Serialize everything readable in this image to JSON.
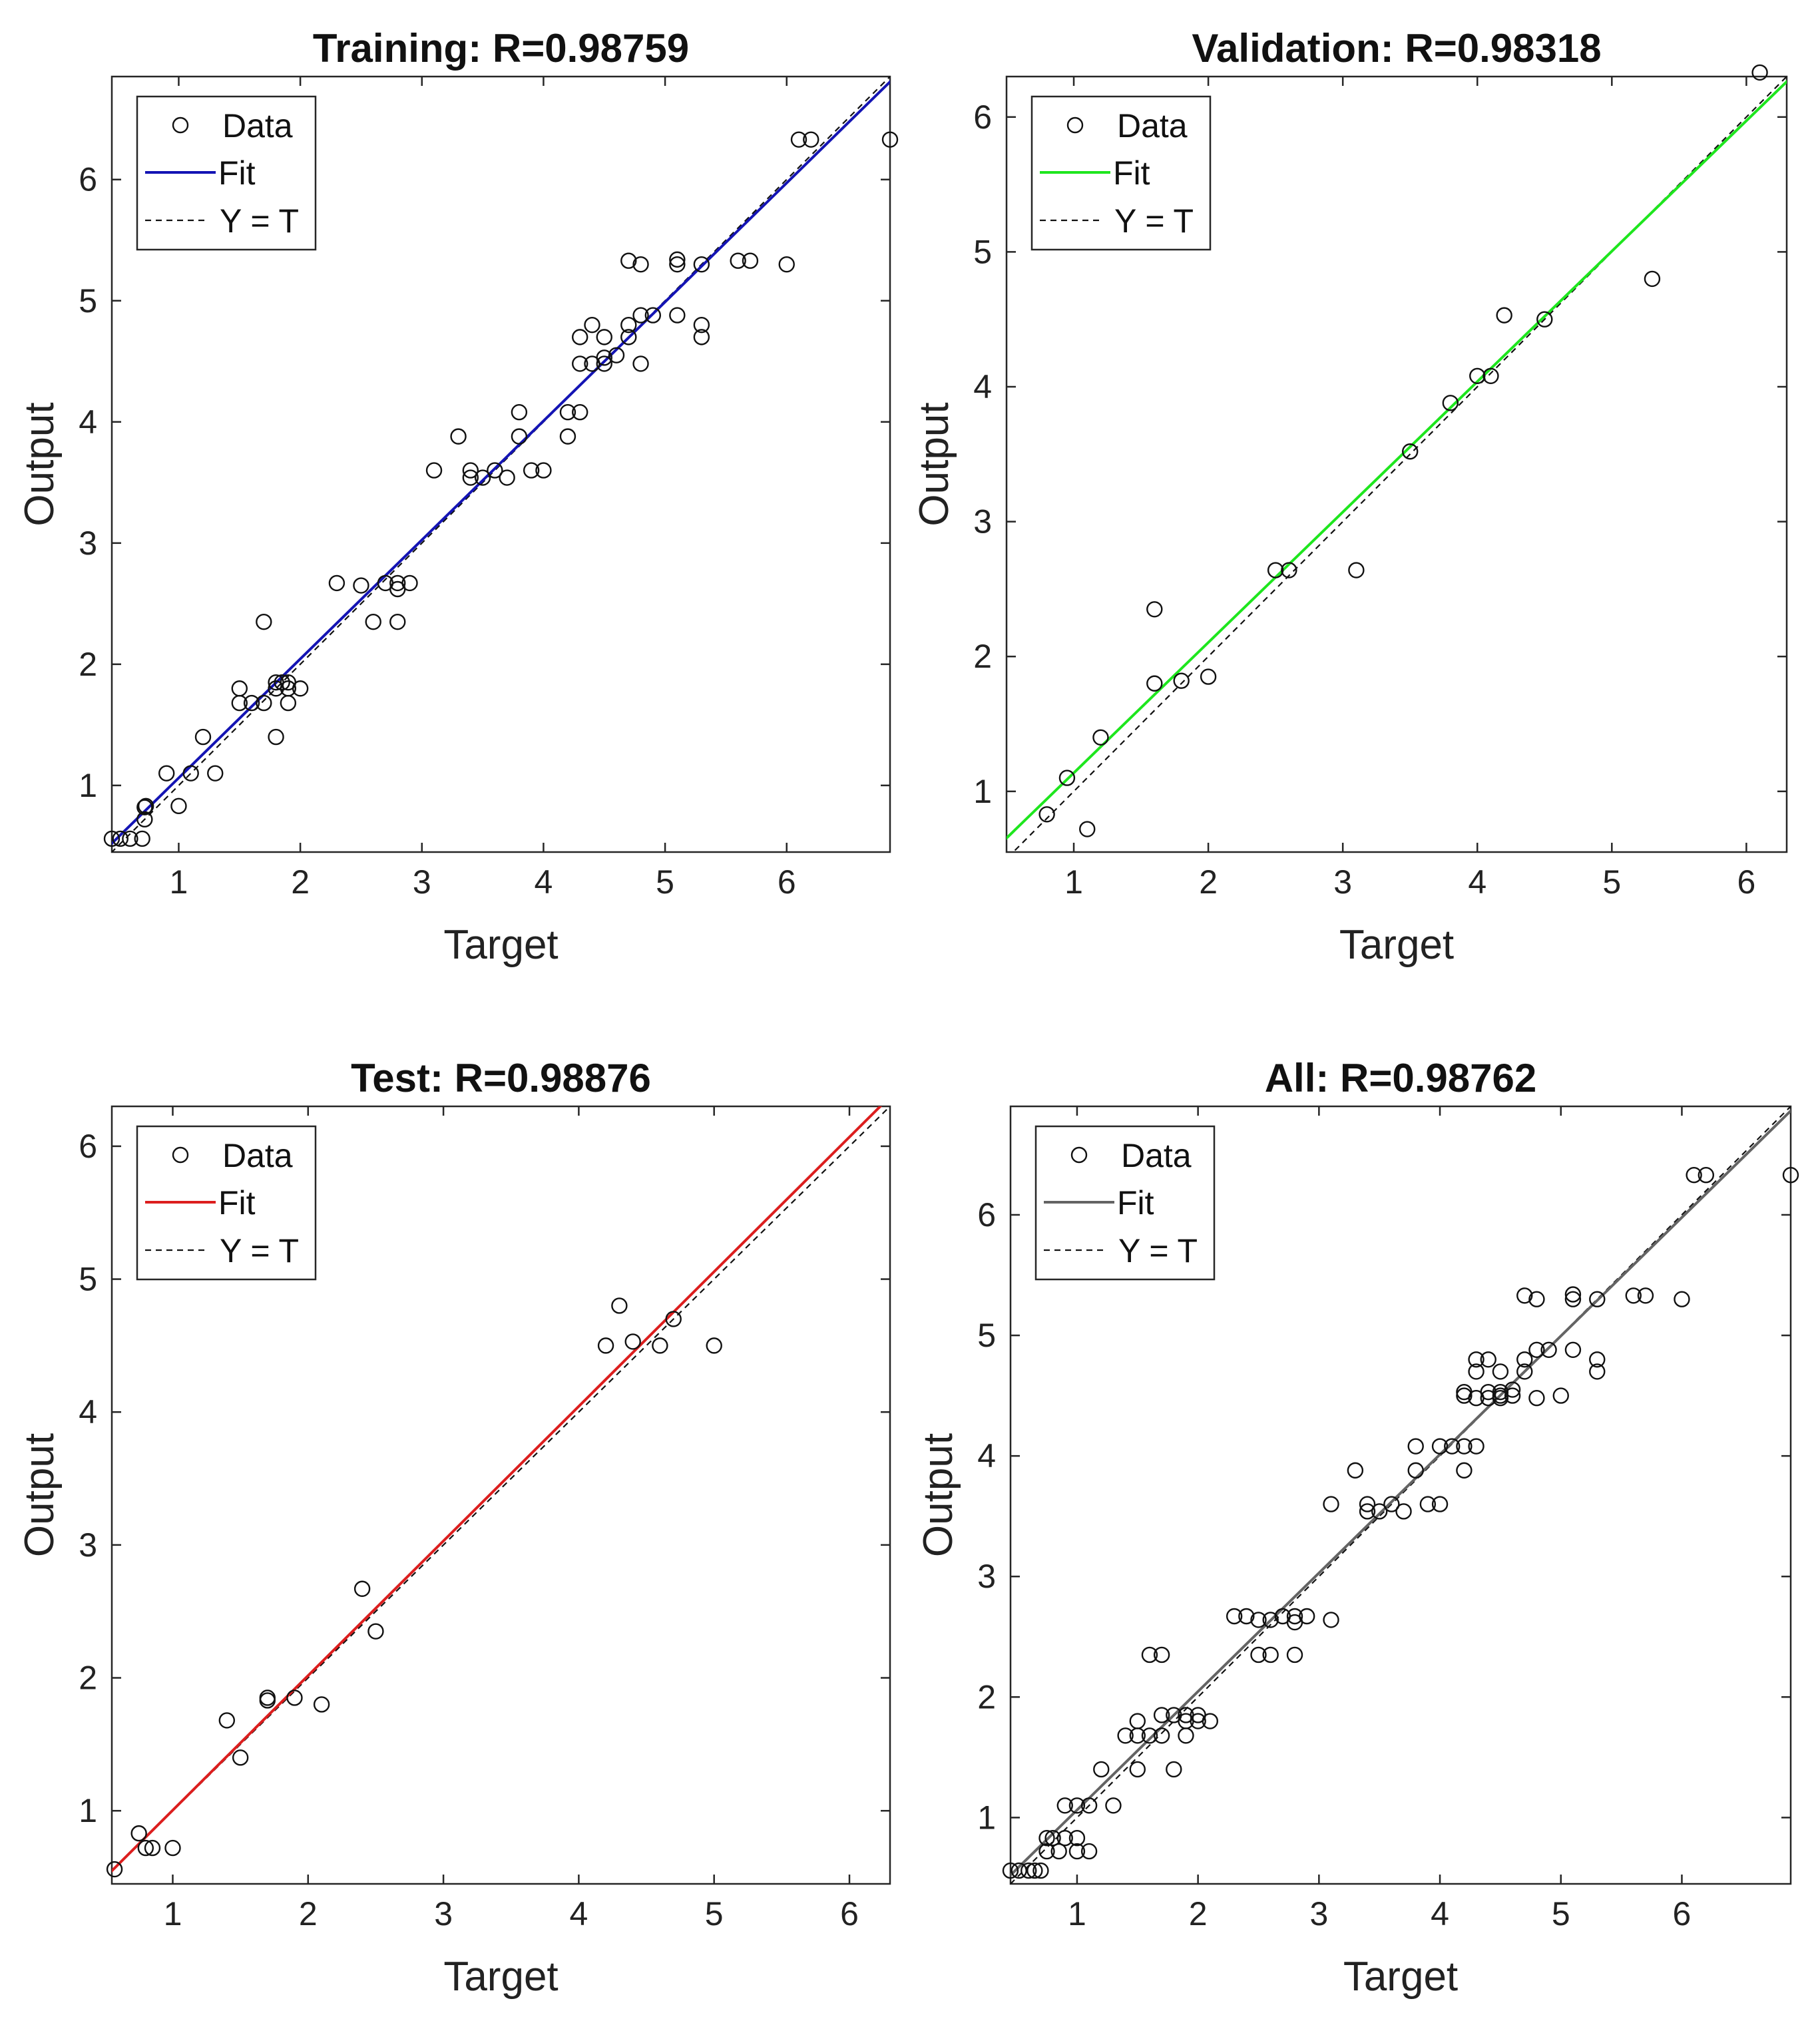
{
  "chart_data": [
    {
      "type": "scatter",
      "title": "Training: R=0.98759",
      "xlabel": "Target",
      "ylabel": "Output",
      "xlim": [
        0.45,
        6.85
      ],
      "ylim": [
        0.45,
        6.85
      ],
      "xticks": [
        1,
        2,
        3,
        4,
        5,
        6
      ],
      "yticks": [
        1,
        2,
        3,
        4,
        5,
        6
      ],
      "fit": {
        "slope": 0.982,
        "intercept": 0.08,
        "color": "#1414b4"
      },
      "legend": {
        "data": "Data",
        "fit": "Fit",
        "ident": "Y = T"
      },
      "points": [
        [
          0.45,
          0.56
        ],
        [
          0.52,
          0.56
        ],
        [
          0.6,
          0.56
        ],
        [
          0.7,
          0.56
        ],
        [
          0.72,
          0.72
        ],
        [
          0.72,
          0.82
        ],
        [
          0.73,
          0.83
        ],
        [
          0.9,
          1.1
        ],
        [
          1.0,
          0.83
        ],
        [
          1.1,
          1.1
        ],
        [
          1.2,
          1.4
        ],
        [
          1.3,
          1.1
        ],
        [
          1.5,
          1.8
        ],
        [
          1.5,
          1.68
        ],
        [
          1.6,
          1.68
        ],
        [
          1.7,
          1.68
        ],
        [
          1.7,
          2.35
        ],
        [
          1.8,
          1.4
        ],
        [
          1.8,
          1.85
        ],
        [
          1.8,
          1.8
        ],
        [
          1.85,
          1.85
        ],
        [
          1.9,
          1.85
        ],
        [
          1.9,
          1.68
        ],
        [
          1.9,
          1.8
        ],
        [
          2.0,
          1.8
        ],
        [
          2.3,
          2.67
        ],
        [
          2.5,
          2.65
        ],
        [
          2.6,
          2.35
        ],
        [
          2.7,
          2.67
        ],
        [
          2.8,
          2.35
        ],
        [
          2.8,
          2.67
        ],
        [
          2.8,
          2.62
        ],
        [
          2.9,
          2.67
        ],
        [
          3.1,
          3.6
        ],
        [
          3.3,
          3.88
        ],
        [
          3.4,
          3.6
        ],
        [
          3.4,
          3.54
        ],
        [
          3.5,
          3.54
        ],
        [
          3.6,
          3.6
        ],
        [
          3.7,
          3.54
        ],
        [
          3.8,
          4.08
        ],
        [
          3.8,
          3.88
        ],
        [
          3.9,
          3.6
        ],
        [
          4.0,
          3.6
        ],
        [
          4.2,
          4.08
        ],
        [
          4.2,
          3.88
        ],
        [
          4.3,
          4.08
        ],
        [
          4.3,
          4.7
        ],
        [
          4.3,
          4.48
        ],
        [
          4.4,
          4.48
        ],
        [
          4.4,
          4.8
        ],
        [
          4.5,
          4.48
        ],
        [
          4.5,
          4.53
        ],
        [
          4.5,
          4.7
        ],
        [
          4.6,
          4.55
        ],
        [
          4.7,
          4.7
        ],
        [
          4.7,
          4.8
        ],
        [
          4.7,
          5.33
        ],
        [
          4.8,
          4.48
        ],
        [
          4.8,
          4.88
        ],
        [
          4.8,
          5.3
        ],
        [
          4.9,
          4.88
        ],
        [
          5.1,
          4.88
        ],
        [
          5.1,
          5.3
        ],
        [
          5.1,
          5.34
        ],
        [
          5.3,
          5.3
        ],
        [
          5.3,
          4.8
        ],
        [
          5.3,
          4.7
        ],
        [
          5.6,
          5.33
        ],
        [
          5.7,
          5.33
        ],
        [
          6.0,
          5.3
        ],
        [
          6.1,
          6.33
        ],
        [
          6.2,
          6.33
        ],
        [
          6.85,
          6.33
        ]
      ]
    },
    {
      "type": "scatter",
      "title": "Validation: R=0.98318",
      "xlabel": "Target",
      "ylabel": "Output",
      "xlim": [
        0.5,
        6.3
      ],
      "ylim": [
        0.55,
        6.3
      ],
      "xticks": [
        1,
        2,
        3,
        4,
        5,
        6
      ],
      "yticks": [
        1,
        2,
        3,
        4,
        5,
        6
      ],
      "fit": {
        "slope": 0.967,
        "intercept": 0.17,
        "color": "#1ee61e"
      },
      "legend": {
        "data": "Data",
        "fit": "Fit",
        "ident": "Y = T"
      },
      "points": [
        [
          0.8,
          0.83
        ],
        [
          0.95,
          1.1
        ],
        [
          1.1,
          0.72
        ],
        [
          1.2,
          1.4
        ],
        [
          1.6,
          2.35
        ],
        [
          1.6,
          1.8
        ],
        [
          1.8,
          1.82
        ],
        [
          2.0,
          1.85
        ],
        [
          2.5,
          2.64
        ],
        [
          2.6,
          2.64
        ],
        [
          3.1,
          2.64
        ],
        [
          3.5,
          3.52
        ],
        [
          3.8,
          3.88
        ],
        [
          4.0,
          4.08
        ],
        [
          4.1,
          4.08
        ],
        [
          4.2,
          4.53
        ],
        [
          4.5,
          4.5
        ],
        [
          5.3,
          4.8
        ],
        [
          6.1,
          6.33
        ]
      ]
    },
    {
      "type": "scatter",
      "title": "Test: R=0.98876",
      "xlabel": "Target",
      "ylabel": "Output",
      "xlim": [
        0.55,
        6.3
      ],
      "ylim": [
        0.45,
        6.3
      ],
      "xticks": [
        1,
        2,
        3,
        4,
        5,
        6
      ],
      "yticks": [
        1,
        2,
        3,
        4,
        5,
        6
      ],
      "fit": {
        "slope": 1.013,
        "intercept": -0.009,
        "color": "#dc1e1e"
      },
      "legend": {
        "data": "Data",
        "fit": "Fit",
        "ident": "Y = T"
      },
      "points": [
        [
          0.57,
          0.56
        ],
        [
          0.75,
          0.83
        ],
        [
          0.8,
          0.72
        ],
        [
          0.85,
          0.72
        ],
        [
          1.0,
          0.72
        ],
        [
          1.4,
          1.68
        ],
        [
          1.5,
          1.4
        ],
        [
          1.7,
          1.85
        ],
        [
          1.7,
          1.83
        ],
        [
          1.9,
          1.85
        ],
        [
          2.1,
          1.8
        ],
        [
          2.4,
          2.67
        ],
        [
          2.5,
          2.35
        ],
        [
          4.2,
          4.5
        ],
        [
          4.3,
          4.8
        ],
        [
          4.4,
          4.53
        ],
        [
          4.6,
          4.5
        ],
        [
          4.7,
          4.7
        ],
        [
          5.0,
          4.5
        ]
      ]
    },
    {
      "type": "scatter",
      "title": "All: R=0.98762",
      "xlabel": "Target",
      "ylabel": "Output",
      "xlim": [
        0.45,
        6.9
      ],
      "ylim": [
        0.45,
        6.9
      ],
      "xticks": [
        1,
        2,
        3,
        4,
        5,
        6
      ],
      "yticks": [
        1,
        2,
        3,
        4,
        5,
        6
      ],
      "fit": {
        "slope": 0.983,
        "intercept": 0.08,
        "color": "#646464"
      },
      "legend": {
        "data": "Data",
        "fit": "Fit",
        "ident": "Y = T"
      },
      "points": [
        [
          0.45,
          0.56
        ],
        [
          0.52,
          0.56
        ],
        [
          0.6,
          0.56
        ],
        [
          0.65,
          0.56
        ],
        [
          0.7,
          0.56
        ],
        [
          0.75,
          0.72
        ],
        [
          0.75,
          0.83
        ],
        [
          0.8,
          0.83
        ],
        [
          0.85,
          0.72
        ],
        [
          0.9,
          0.83
        ],
        [
          0.9,
          1.1
        ],
        [
          1.0,
          1.1
        ],
        [
          1.0,
          0.72
        ],
        [
          1.0,
          0.83
        ],
        [
          1.1,
          1.1
        ],
        [
          1.1,
          0.72
        ],
        [
          1.2,
          1.4
        ],
        [
          1.3,
          1.1
        ],
        [
          1.4,
          1.68
        ],
        [
          1.5,
          1.4
        ],
        [
          1.5,
          1.68
        ],
        [
          1.5,
          1.8
        ],
        [
          1.6,
          1.68
        ],
        [
          1.6,
          2.35
        ],
        [
          1.7,
          2.35
        ],
        [
          1.7,
          1.68
        ],
        [
          1.7,
          1.85
        ],
        [
          1.8,
          1.4
        ],
        [
          1.8,
          1.85
        ],
        [
          1.9,
          1.85
        ],
        [
          1.9,
          1.68
        ],
        [
          1.9,
          1.8
        ],
        [
          2.0,
          1.8
        ],
        [
          2.0,
          1.85
        ],
        [
          2.1,
          1.8
        ],
        [
          2.3,
          2.67
        ],
        [
          2.4,
          2.67
        ],
        [
          2.5,
          2.64
        ],
        [
          2.5,
          2.35
        ],
        [
          2.6,
          2.35
        ],
        [
          2.6,
          2.64
        ],
        [
          2.7,
          2.67
        ],
        [
          2.8,
          2.35
        ],
        [
          2.8,
          2.67
        ],
        [
          2.8,
          2.62
        ],
        [
          2.9,
          2.67
        ],
        [
          3.1,
          2.64
        ],
        [
          3.1,
          3.6
        ],
        [
          3.3,
          3.88
        ],
        [
          3.4,
          3.6
        ],
        [
          3.4,
          3.54
        ],
        [
          3.5,
          3.54
        ],
        [
          3.6,
          3.6
        ],
        [
          3.7,
          3.54
        ],
        [
          3.8,
          4.08
        ],
        [
          3.8,
          3.88
        ],
        [
          3.9,
          3.6
        ],
        [
          4.0,
          3.6
        ],
        [
          4.0,
          4.08
        ],
        [
          4.1,
          4.08
        ],
        [
          4.2,
          4.08
        ],
        [
          4.2,
          3.88
        ],
        [
          4.2,
          4.53
        ],
        [
          4.2,
          4.5
        ],
        [
          4.3,
          4.08
        ],
        [
          4.3,
          4.7
        ],
        [
          4.3,
          4.8
        ],
        [
          4.3,
          4.48
        ],
        [
          4.4,
          4.48
        ],
        [
          4.4,
          4.8
        ],
        [
          4.4,
          4.53
        ],
        [
          4.5,
          4.48
        ],
        [
          4.5,
          4.53
        ],
        [
          4.5,
          4.5
        ],
        [
          4.5,
          4.7
        ],
        [
          4.6,
          4.55
        ],
        [
          4.6,
          4.5
        ],
        [
          4.7,
          4.7
        ],
        [
          4.7,
          4.8
        ],
        [
          4.7,
          5.33
        ],
        [
          4.8,
          4.48
        ],
        [
          4.8,
          4.88
        ],
        [
          4.8,
          5.3
        ],
        [
          4.9,
          4.88
        ],
        [
          5.0,
          4.5
        ],
        [
          5.1,
          4.88
        ],
        [
          5.1,
          5.3
        ],
        [
          5.1,
          5.34
        ],
        [
          5.3,
          5.3
        ],
        [
          5.3,
          4.8
        ],
        [
          5.3,
          4.7
        ],
        [
          5.6,
          5.33
        ],
        [
          5.7,
          5.33
        ],
        [
          6.0,
          5.3
        ],
        [
          6.1,
          6.33
        ],
        [
          6.2,
          6.33
        ],
        [
          6.9,
          6.33
        ]
      ]
    }
  ]
}
